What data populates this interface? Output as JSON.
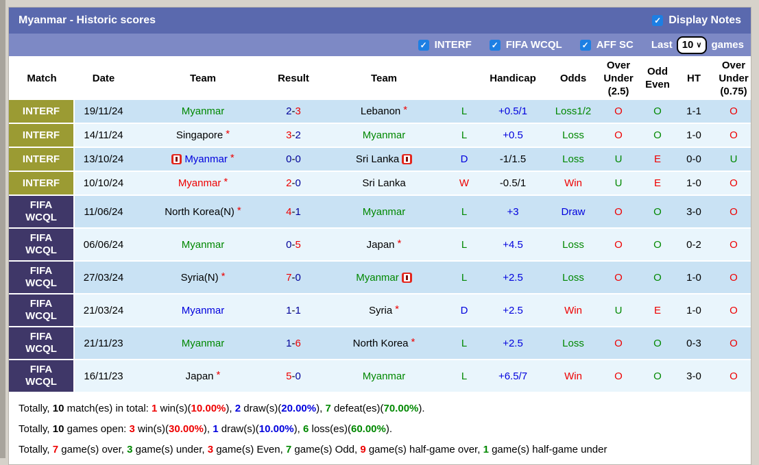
{
  "header": {
    "title": "Myanmar - Historic scores",
    "display_notes_label": "Display Notes",
    "display_notes_checked": true
  },
  "filters": {
    "checkboxes": [
      {
        "label": "INTERF",
        "checked": true
      },
      {
        "label": "FIFA WCQL",
        "checked": true
      },
      {
        "label": "AFF SC",
        "checked": true
      }
    ],
    "last_label": "Last",
    "last_value": "10",
    "games_label": "games"
  },
  "theme": {
    "page_bg": "#d6d2ca",
    "groove": "#a8a49c",
    "titlebar": "#5a69ae",
    "filterbar": "#7d89c5",
    "checkbox": "#1d7fe3",
    "league_interf": "#9b9b33",
    "league_fifa": "#3f3768",
    "row_dark": "#c9e2f4",
    "row_light": "#e9f5fc",
    "note_red": "#e3261d"
  },
  "colors": {
    "red": "#ee0000",
    "green": "#008800",
    "blue": "#0000dd",
    "navy": "#000099",
    "black": "#000000"
  },
  "table": {
    "columns": [
      "Match",
      "Date",
      "Team",
      "Result",
      "Team",
      "",
      "Handicap",
      "Odds",
      "Over Under (2.5)",
      "Odd Even",
      "HT",
      "Over Under (0.75)"
    ],
    "rows": [
      {
        "league": "INTERF",
        "date": "19/11/24",
        "home": {
          "name": "Myanmar",
          "color": "green",
          "star": false,
          "note_before": false,
          "note_after": false
        },
        "score": [
          {
            "t": "2",
            "c": "navy"
          },
          {
            "t": "3",
            "c": "red"
          }
        ],
        "away": {
          "name": "Lebanon",
          "color": "black",
          "star": true,
          "note_before": false,
          "note_after": false
        },
        "res": {
          "t": "L",
          "c": "green"
        },
        "handicap": {
          "t": "+0.5/1",
          "c": "blue"
        },
        "odds": {
          "t": "Loss1/2",
          "c": "green"
        },
        "ou25": {
          "t": "O",
          "c": "red"
        },
        "oe": {
          "t": "O",
          "c": "green"
        },
        "ht": "1-1",
        "ou075": {
          "t": "O",
          "c": "red"
        }
      },
      {
        "league": "INTERF",
        "date": "14/11/24",
        "home": {
          "name": "Singapore",
          "color": "black",
          "star": true,
          "note_before": false,
          "note_after": false
        },
        "score": [
          {
            "t": "3",
            "c": "red"
          },
          {
            "t": "2",
            "c": "navy"
          }
        ],
        "away": {
          "name": "Myanmar",
          "color": "green",
          "star": false,
          "note_before": false,
          "note_after": false
        },
        "res": {
          "t": "L",
          "c": "green"
        },
        "handicap": {
          "t": "+0.5",
          "c": "blue"
        },
        "odds": {
          "t": "Loss",
          "c": "green"
        },
        "ou25": {
          "t": "O",
          "c": "red"
        },
        "oe": {
          "t": "O",
          "c": "green"
        },
        "ht": "1-0",
        "ou075": {
          "t": "O",
          "c": "red"
        }
      },
      {
        "league": "INTERF",
        "date": "13/10/24",
        "home": {
          "name": "Myanmar",
          "color": "blue",
          "star": true,
          "note_before": true,
          "note_after": false
        },
        "score": [
          {
            "t": "0",
            "c": "navy"
          },
          {
            "t": "0",
            "c": "navy"
          }
        ],
        "away": {
          "name": "Sri Lanka",
          "color": "black",
          "star": false,
          "note_before": false,
          "note_after": true
        },
        "res": {
          "t": "D",
          "c": "blue"
        },
        "handicap": {
          "t": "-1/1.5",
          "c": "black"
        },
        "odds": {
          "t": "Loss",
          "c": "green"
        },
        "ou25": {
          "t": "U",
          "c": "green"
        },
        "oe": {
          "t": "E",
          "c": "red"
        },
        "ht": "0-0",
        "ou075": {
          "t": "U",
          "c": "green"
        }
      },
      {
        "league": "INTERF",
        "date": "10/10/24",
        "home": {
          "name": "Myanmar",
          "color": "red",
          "star": true,
          "note_before": false,
          "note_after": false
        },
        "score": [
          {
            "t": "2",
            "c": "red"
          },
          {
            "t": "0",
            "c": "navy"
          }
        ],
        "away": {
          "name": "Sri Lanka",
          "color": "black",
          "star": false,
          "note_before": false,
          "note_after": false
        },
        "res": {
          "t": "W",
          "c": "red"
        },
        "handicap": {
          "t": "-0.5/1",
          "c": "black"
        },
        "odds": {
          "t": "Win",
          "c": "red"
        },
        "ou25": {
          "t": "U",
          "c": "green"
        },
        "oe": {
          "t": "E",
          "c": "red"
        },
        "ht": "1-0",
        "ou075": {
          "t": "O",
          "c": "red"
        }
      },
      {
        "league": "FIFA WCQL",
        "date": "11/06/24",
        "home": {
          "name": "North Korea(N)",
          "color": "black",
          "star": true,
          "note_before": false,
          "note_after": false
        },
        "score": [
          {
            "t": "4",
            "c": "red"
          },
          {
            "t": "1",
            "c": "navy"
          }
        ],
        "away": {
          "name": "Myanmar",
          "color": "green",
          "star": false,
          "note_before": false,
          "note_after": false
        },
        "res": {
          "t": "L",
          "c": "green"
        },
        "handicap": {
          "t": "+3",
          "c": "blue"
        },
        "odds": {
          "t": "Draw",
          "c": "blue"
        },
        "ou25": {
          "t": "O",
          "c": "red"
        },
        "oe": {
          "t": "O",
          "c": "green"
        },
        "ht": "3-0",
        "ou075": {
          "t": "O",
          "c": "red"
        }
      },
      {
        "league": "FIFA WCQL",
        "date": "06/06/24",
        "home": {
          "name": "Myanmar",
          "color": "green",
          "star": false,
          "note_before": false,
          "note_after": false
        },
        "score": [
          {
            "t": "0",
            "c": "navy"
          },
          {
            "t": "5",
            "c": "red"
          }
        ],
        "away": {
          "name": "Japan",
          "color": "black",
          "star": true,
          "note_before": false,
          "note_after": false
        },
        "res": {
          "t": "L",
          "c": "green"
        },
        "handicap": {
          "t": "+4.5",
          "c": "blue"
        },
        "odds": {
          "t": "Loss",
          "c": "green"
        },
        "ou25": {
          "t": "O",
          "c": "red"
        },
        "oe": {
          "t": "O",
          "c": "green"
        },
        "ht": "0-2",
        "ou075": {
          "t": "O",
          "c": "red"
        }
      },
      {
        "league": "FIFA WCQL",
        "date": "27/03/24",
        "home": {
          "name": "Syria(N)",
          "color": "black",
          "star": true,
          "note_before": false,
          "note_after": false
        },
        "score": [
          {
            "t": "7",
            "c": "red"
          },
          {
            "t": "0",
            "c": "navy"
          }
        ],
        "away": {
          "name": "Myanmar",
          "color": "green",
          "star": false,
          "note_before": false,
          "note_after": true
        },
        "res": {
          "t": "L",
          "c": "green"
        },
        "handicap": {
          "t": "+2.5",
          "c": "blue"
        },
        "odds": {
          "t": "Loss",
          "c": "green"
        },
        "ou25": {
          "t": "O",
          "c": "red"
        },
        "oe": {
          "t": "O",
          "c": "green"
        },
        "ht": "1-0",
        "ou075": {
          "t": "O",
          "c": "red"
        }
      },
      {
        "league": "FIFA WCQL",
        "date": "21/03/24",
        "home": {
          "name": "Myanmar",
          "color": "blue",
          "star": false,
          "note_before": false,
          "note_after": false
        },
        "score": [
          {
            "t": "1",
            "c": "navy"
          },
          {
            "t": "1",
            "c": "navy"
          }
        ],
        "away": {
          "name": "Syria",
          "color": "black",
          "star": true,
          "note_before": false,
          "note_after": false
        },
        "res": {
          "t": "D",
          "c": "blue"
        },
        "handicap": {
          "t": "+2.5",
          "c": "blue"
        },
        "odds": {
          "t": "Win",
          "c": "red"
        },
        "ou25": {
          "t": "U",
          "c": "green"
        },
        "oe": {
          "t": "E",
          "c": "red"
        },
        "ht": "1-0",
        "ou075": {
          "t": "O",
          "c": "red"
        }
      },
      {
        "league": "FIFA WCQL",
        "date": "21/11/23",
        "home": {
          "name": "Myanmar",
          "color": "green",
          "star": false,
          "note_before": false,
          "note_after": false
        },
        "score": [
          {
            "t": "1",
            "c": "navy"
          },
          {
            "t": "6",
            "c": "red"
          }
        ],
        "away": {
          "name": "North Korea",
          "color": "black",
          "star": true,
          "note_before": false,
          "note_after": false
        },
        "res": {
          "t": "L",
          "c": "green"
        },
        "handicap": {
          "t": "+2.5",
          "c": "blue"
        },
        "odds": {
          "t": "Loss",
          "c": "green"
        },
        "ou25": {
          "t": "O",
          "c": "red"
        },
        "oe": {
          "t": "O",
          "c": "green"
        },
        "ht": "0-3",
        "ou075": {
          "t": "O",
          "c": "red"
        }
      },
      {
        "league": "FIFA WCQL",
        "date": "16/11/23",
        "home": {
          "name": "Japan",
          "color": "black",
          "star": true,
          "note_before": false,
          "note_after": false
        },
        "score": [
          {
            "t": "5",
            "c": "red"
          },
          {
            "t": "0",
            "c": "navy"
          }
        ],
        "away": {
          "name": "Myanmar",
          "color": "green",
          "star": false,
          "note_before": false,
          "note_after": false
        },
        "res": {
          "t": "L",
          "c": "green"
        },
        "handicap": {
          "t": "+6.5/7",
          "c": "blue"
        },
        "odds": {
          "t": "Win",
          "c": "red"
        },
        "ou25": {
          "t": "O",
          "c": "red"
        },
        "oe": {
          "t": "O",
          "c": "green"
        },
        "ht": "3-0",
        "ou075": {
          "t": "O",
          "c": "red"
        }
      }
    ]
  },
  "summary": [
    [
      {
        "t": "Totally, "
      },
      {
        "t": "10",
        "b": true
      },
      {
        "t": " match(es) in total: "
      },
      {
        "t": "1",
        "c": "red",
        "b": true
      },
      {
        "t": " win(s)("
      },
      {
        "t": "10.00%",
        "c": "red",
        "b": true
      },
      {
        "t": "), "
      },
      {
        "t": "2",
        "c": "blue",
        "b": true
      },
      {
        "t": " draw(s)("
      },
      {
        "t": "20.00%",
        "c": "blue",
        "b": true
      },
      {
        "t": "), "
      },
      {
        "t": "7",
        "c": "green",
        "b": true
      },
      {
        "t": " defeat(es)("
      },
      {
        "t": "70.00%",
        "c": "green",
        "b": true
      },
      {
        "t": ")."
      }
    ],
    [
      {
        "t": "Totally, "
      },
      {
        "t": "10",
        "b": true
      },
      {
        "t": " games open: "
      },
      {
        "t": "3",
        "c": "red",
        "b": true
      },
      {
        "t": " win(s)("
      },
      {
        "t": "30.00%",
        "c": "red",
        "b": true
      },
      {
        "t": "), "
      },
      {
        "t": "1",
        "c": "blue",
        "b": true
      },
      {
        "t": " draw(s)("
      },
      {
        "t": "10.00%",
        "c": "blue",
        "b": true
      },
      {
        "t": "), "
      },
      {
        "t": "6",
        "c": "green",
        "b": true
      },
      {
        "t": " loss(es)("
      },
      {
        "t": "60.00%",
        "c": "green",
        "b": true
      },
      {
        "t": ")."
      }
    ],
    [
      {
        "t": "Totally, "
      },
      {
        "t": "7",
        "c": "red",
        "b": true
      },
      {
        "t": " game(s) over, "
      },
      {
        "t": "3",
        "c": "green",
        "b": true
      },
      {
        "t": " game(s) under, "
      },
      {
        "t": "3",
        "c": "red",
        "b": true
      },
      {
        "t": " game(s) Even, "
      },
      {
        "t": "7",
        "c": "green",
        "b": true
      },
      {
        "t": " game(s) Odd, "
      },
      {
        "t": "9",
        "c": "red",
        "b": true
      },
      {
        "t": " game(s) half-game over, "
      },
      {
        "t": "1",
        "c": "green",
        "b": true
      },
      {
        "t": " game(s) half-game under"
      }
    ]
  ]
}
